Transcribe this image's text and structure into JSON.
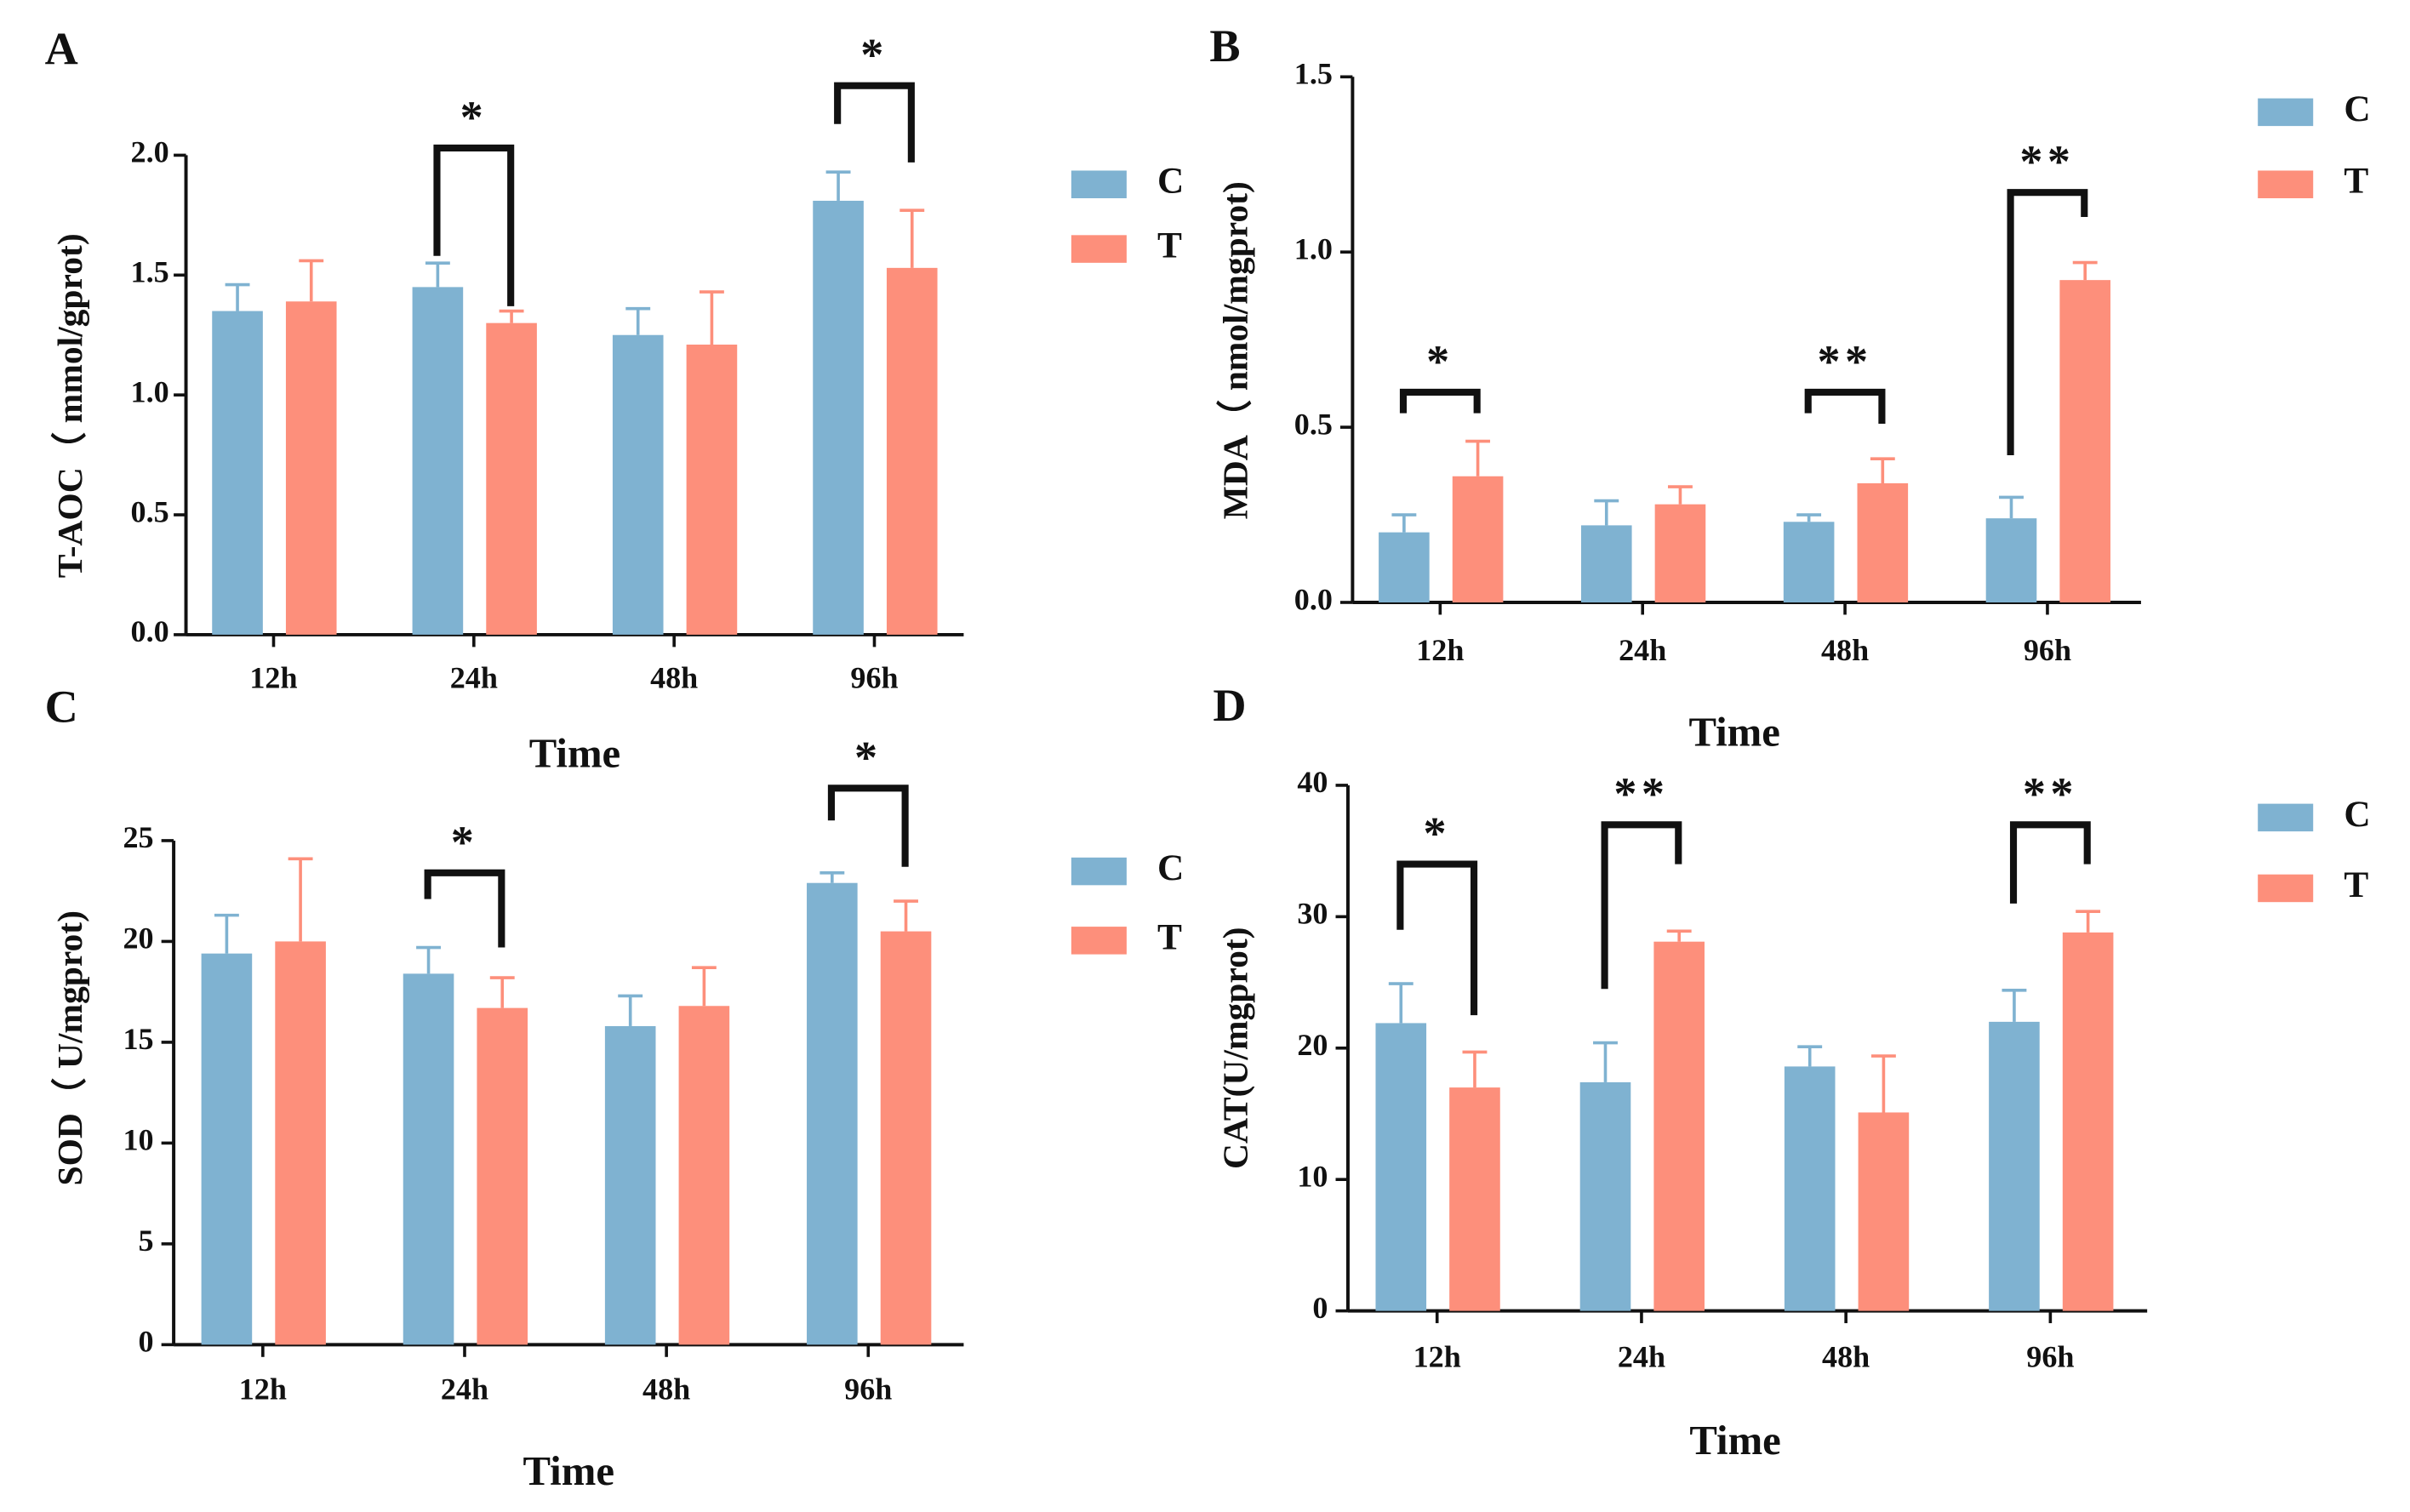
{
  "colors": {
    "C": "#7fb2d1",
    "T": "#fd8f7b",
    "axis": "#111111"
  },
  "chart_data": [
    {
      "panel": "A",
      "type": "bar",
      "title": "",
      "xlabel": "Time",
      "ylabel": "T-AOC（ mmol/gprot)",
      "categories": [
        "12h",
        "24h",
        "48h",
        "96h"
      ],
      "ylim": [
        0,
        2.0
      ],
      "yticks": [
        "0.0",
        "0.5",
        "1.0",
        "1.5",
        "2.0"
      ],
      "yticks_values": [
        0,
        0.5,
        1.0,
        1.5,
        2.0
      ],
      "series": [
        {
          "name": "C",
          "values": [
            1.35,
            1.45,
            1.25,
            1.81
          ],
          "errors": [
            0.11,
            0.1,
            0.11,
            0.12
          ]
        },
        {
          "name": "T",
          "values": [
            1.39,
            1.3,
            1.21,
            1.53
          ],
          "errors": [
            0.17,
            0.05,
            0.22,
            0.24
          ]
        }
      ],
      "significance": [
        {
          "category_index": 1,
          "label": "*",
          "left_value": 1.58,
          "right_value": 1.37,
          "top_value": 2.03
        },
        {
          "category_index": 3,
          "label": "*",
          "left_value": 2.13,
          "right_value": 1.97,
          "top_value": 2.29
        }
      ],
      "legend": [
        "C",
        "T"
      ]
    },
    {
      "panel": "B",
      "type": "bar",
      "title": "",
      "xlabel": "Time",
      "ylabel": "MDA（ nmol/mgprot)",
      "categories": [
        "12h",
        "24h",
        "48h",
        "96h"
      ],
      "ylim": [
        0,
        1.5
      ],
      "yticks": [
        "0.0",
        "0.5",
        "1.0",
        "1.5"
      ],
      "yticks_values": [
        0,
        0.5,
        1.0,
        1.5
      ],
      "series": [
        {
          "name": "C",
          "values": [
            0.2,
            0.22,
            0.23,
            0.24
          ],
          "errors": [
            0.05,
            0.07,
            0.02,
            0.06
          ]
        },
        {
          "name": "T",
          "values": [
            0.36,
            0.28,
            0.34,
            0.92
          ],
          "errors": [
            0.1,
            0.05,
            0.07,
            0.05
          ]
        }
      ],
      "significance": [
        {
          "category_index": 0,
          "label": "*",
          "left_value": 0.54,
          "right_value": 0.54,
          "top_value": 0.6
        },
        {
          "category_index": 2,
          "label": "**",
          "left_value": 0.54,
          "right_value": 0.51,
          "top_value": 0.6
        },
        {
          "category_index": 3,
          "label": "**",
          "left_value": 0.42,
          "right_value": 1.1,
          "top_value": 1.17
        }
      ],
      "legend": [
        "C",
        "T"
      ]
    },
    {
      "panel": "C",
      "type": "bar",
      "title": "",
      "xlabel": "Time",
      "ylabel": "SOD（ U/mgprot)",
      "categories": [
        "12h",
        "24h",
        "48h",
        "96h"
      ],
      "ylim": [
        0,
        25
      ],
      "yticks": [
        "0",
        "5",
        "10",
        "15",
        "20",
        "25"
      ],
      "yticks_values": [
        0,
        5,
        10,
        15,
        20,
        25
      ],
      "series": [
        {
          "name": "C",
          "values": [
            19.4,
            18.4,
            15.8,
            22.9
          ],
          "errors": [
            1.9,
            1.3,
            1.5,
            0.5
          ]
        },
        {
          "name": "T",
          "values": [
            20.0,
            16.7,
            16.8,
            20.5
          ],
          "errors": [
            4.1,
            1.5,
            1.9,
            1.5
          ]
        }
      ],
      "significance": [
        {
          "category_index": 1,
          "label": "*",
          "left_value": 22.1,
          "right_value": 19.7,
          "top_value": 23.4
        },
        {
          "category_index": 3,
          "label": "*",
          "left_value": 26.0,
          "right_value": 23.7,
          "top_value": 27.6
        }
      ],
      "legend": [
        "C",
        "T"
      ]
    },
    {
      "panel": "D",
      "type": "bar",
      "title": "",
      "xlabel": "Time",
      "ylabel": "CAT(U/mgprot)",
      "categories": [
        "12h",
        "24h",
        "48h",
        "96h"
      ],
      "ylim": [
        0,
        40
      ],
      "yticks": [
        "0",
        "10",
        "20",
        "30",
        "40"
      ],
      "yticks_values": [
        0,
        10,
        20,
        30,
        40
      ],
      "series": [
        {
          "name": "C",
          "values": [
            21.9,
            17.4,
            18.6,
            22.0
          ],
          "errors": [
            3.0,
            3.0,
            1.5,
            2.4
          ]
        },
        {
          "name": "T",
          "values": [
            17.0,
            28.1,
            15.1,
            28.8
          ],
          "errors": [
            2.7,
            0.8,
            4.3,
            1.6
          ]
        }
      ],
      "significance": [
        {
          "category_index": 0,
          "label": "*",
          "left_value": 29.0,
          "right_value": 22.5,
          "top_value": 34.0
        },
        {
          "category_index": 1,
          "label": "**",
          "left_value": 24.5,
          "right_value": 34.0,
          "top_value": 37.0
        },
        {
          "category_index": 3,
          "label": "**",
          "left_value": 31.0,
          "right_value": 34.0,
          "top_value": 37.0
        }
      ],
      "legend": [
        "C",
        "T"
      ]
    }
  ]
}
